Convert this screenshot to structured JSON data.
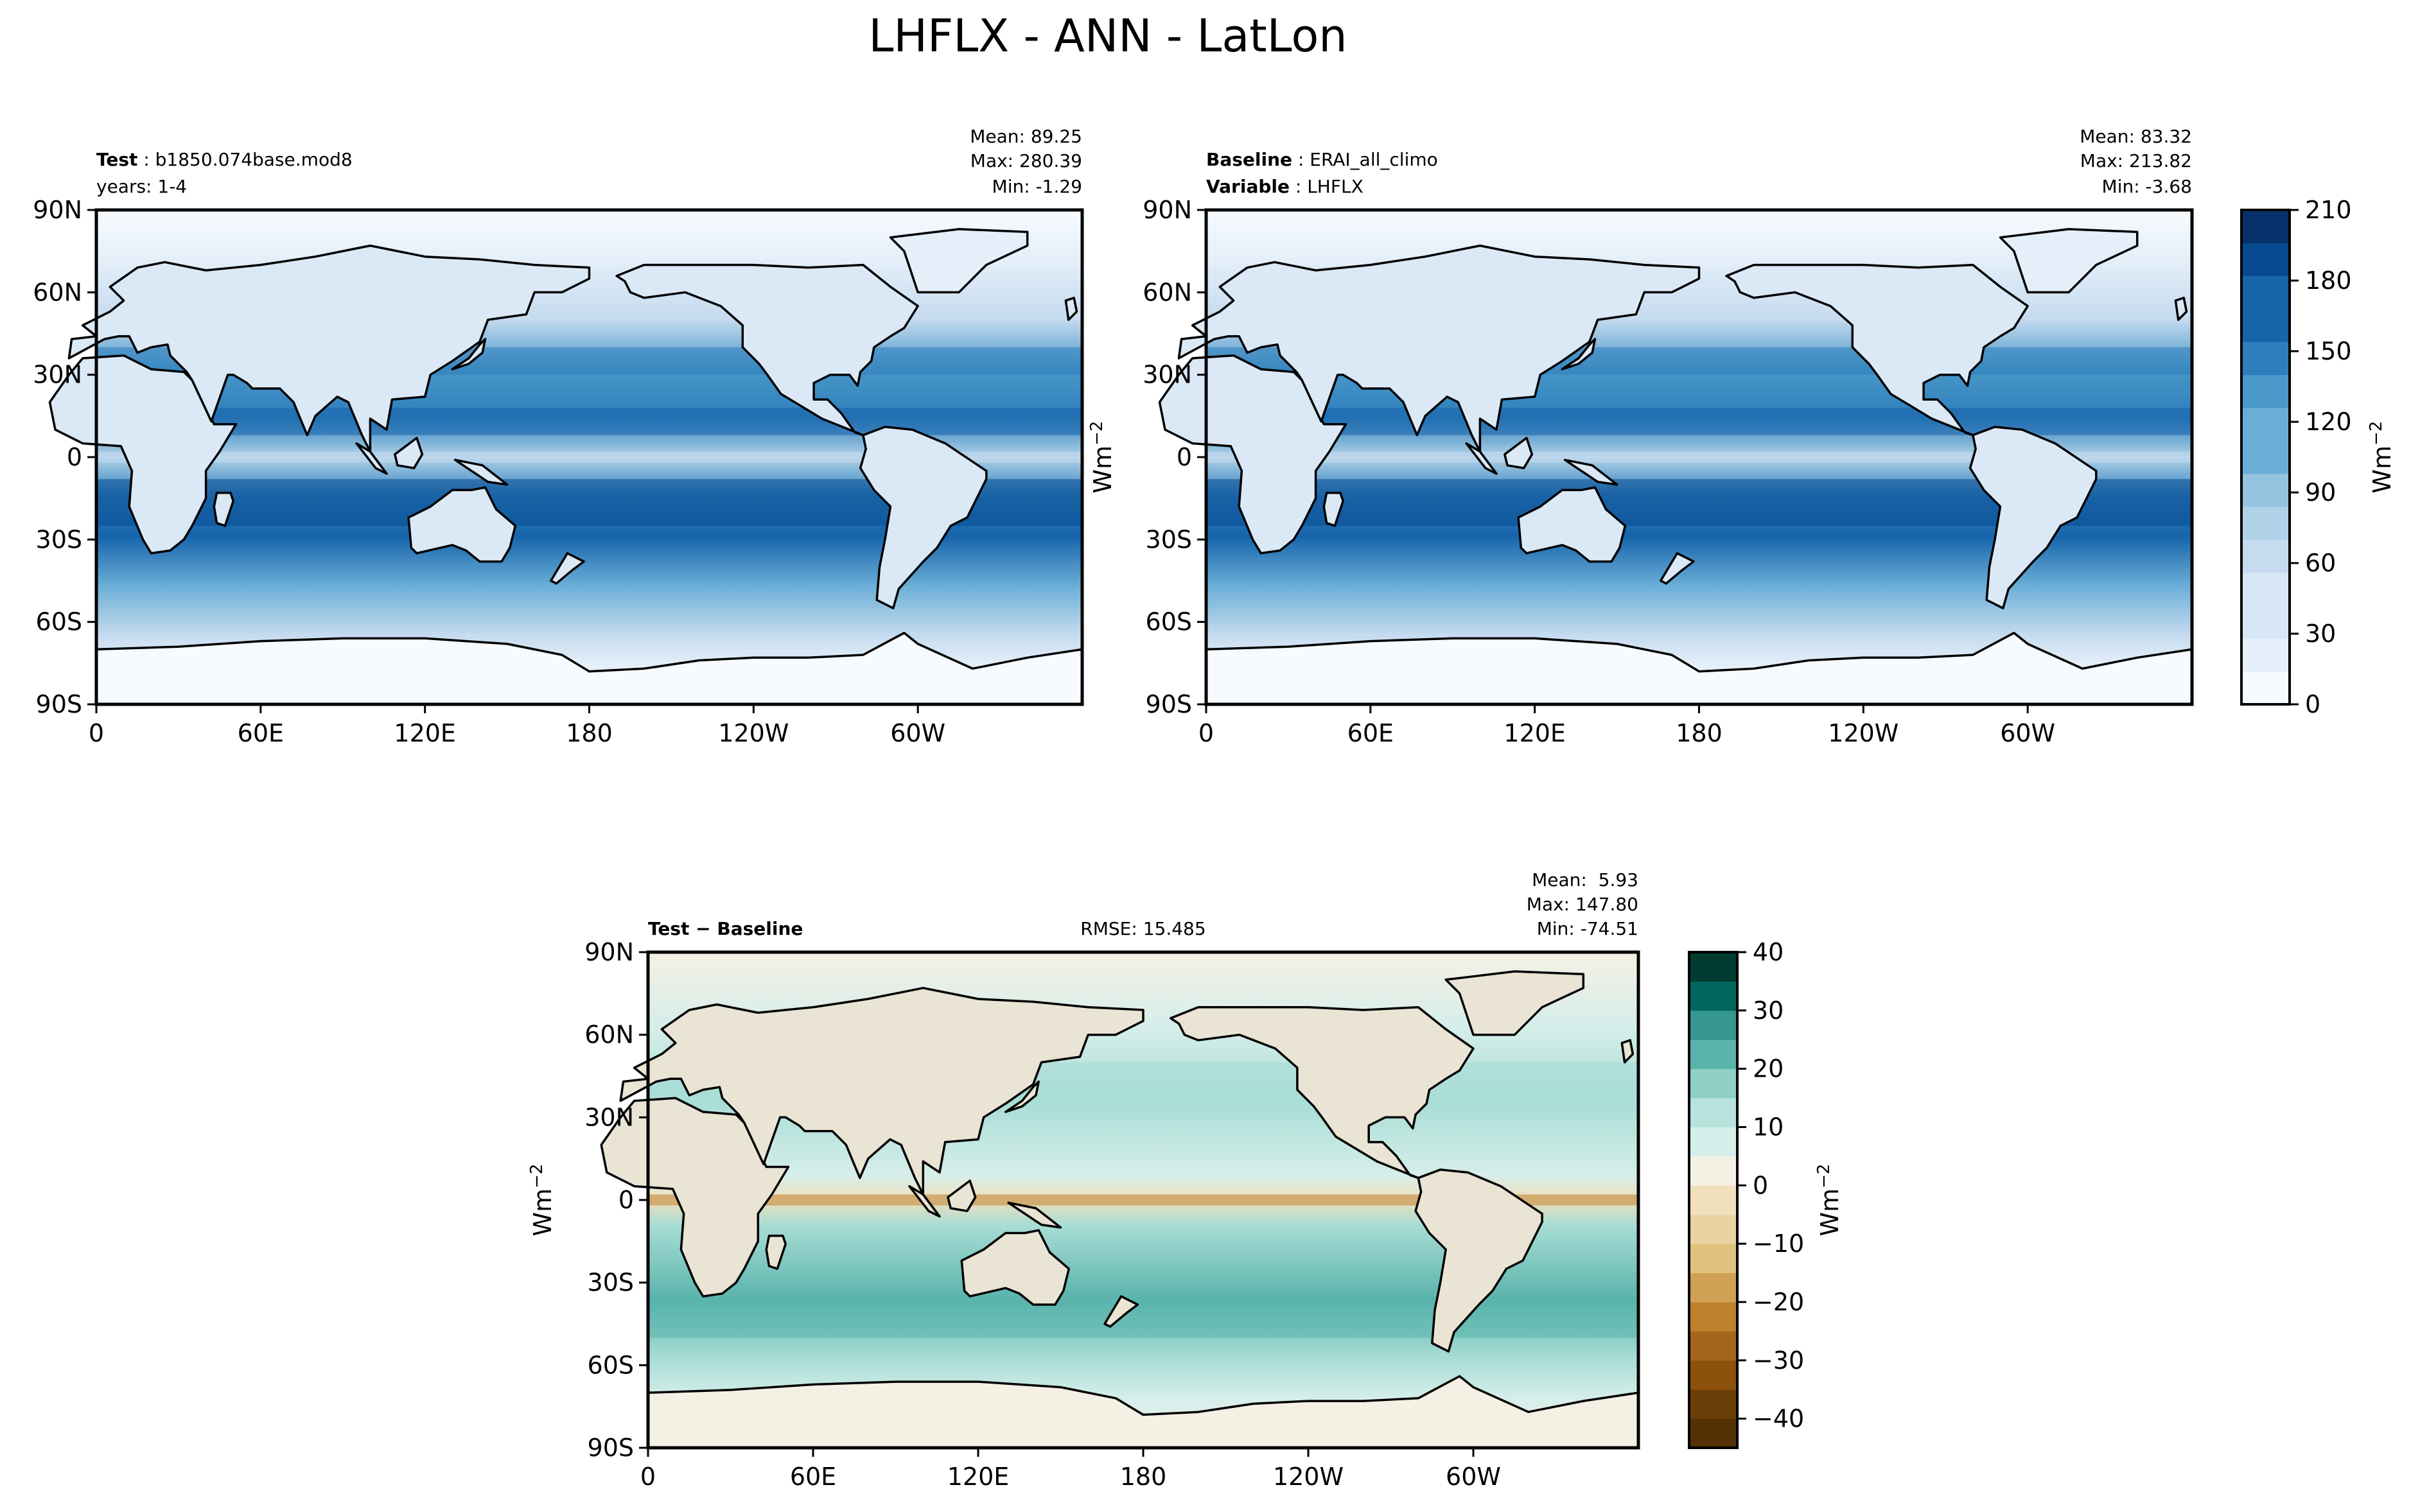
{
  "figure": {
    "title": "LHFLX - ANN - LatLon"
  },
  "colors": {
    "blues": [
      "#f7fbff",
      "#e4eff9",
      "#d8e7f5",
      "#c6dbef",
      "#b0d2e8",
      "#94c4df",
      "#6aaed6",
      "#4a98c9",
      "#2e7ebc",
      "#1764ab",
      "#084a91",
      "#08306b"
    ],
    "diff": [
      "#543005",
      "#8c510a",
      "#bf812d",
      "#dfc27d",
      "#f0e0bc",
      "#f5f0e4",
      "#d6eeea",
      "#a8ddd5",
      "#5ab4ac",
      "#01665e",
      "#003c30"
    ],
    "land_low": "#e8f1fa",
    "coast": "#000000"
  },
  "chart_data": [
    {
      "type": "heatmap",
      "panel": "test",
      "variable": "LHFLX",
      "label_bold": "Test",
      "label_text": "b1850.074base.mod8",
      "label_line2": "years: 1-4",
      "stats": [
        "Mean: 89.25",
        "Max: 280.39",
        "Min: -1.29"
      ],
      "mean": 89.25,
      "max": 280.39,
      "min": -1.29,
      "xticks": [
        "0",
        "60E",
        "120E",
        "180",
        "120W",
        "60W"
      ],
      "yticks": [
        "90N",
        "60N",
        "30N",
        "0",
        "30S",
        "60S",
        "90S"
      ],
      "xlim": [
        0,
        360
      ],
      "ylim": [
        -90,
        90
      ],
      "colormap": "Blues",
      "clim": [
        0,
        210
      ]
    },
    {
      "type": "heatmap",
      "panel": "baseline",
      "label_bold": "Baseline",
      "label_text": "ERAI_all_climo",
      "label2_bold": "Variable",
      "label2_text": "LHFLX",
      "stats": [
        "Mean: 83.32",
        "Max: 213.82",
        "Min: -3.68"
      ],
      "mean": 83.32,
      "max": 213.82,
      "min": -3.68,
      "xticks": [
        "0",
        "60E",
        "120E",
        "180",
        "120W",
        "60W"
      ],
      "yticks": [
        "90N",
        "60N",
        "30N",
        "0",
        "30S",
        "60S",
        "90S"
      ],
      "xlim": [
        0,
        360
      ],
      "ylim": [
        -90,
        90
      ],
      "colormap": "Blues",
      "clim": [
        0,
        210
      ],
      "colorbar_ticks": [
        "210",
        "180",
        "150",
        "120",
        "90",
        "60",
        "30",
        "0"
      ],
      "colorbar_label": "Wm",
      "colorbar_label_sup": "−2"
    },
    {
      "type": "heatmap",
      "panel": "difference",
      "label_bold": "Test − Baseline",
      "rmse": "RMSE: 15.485",
      "stats": [
        "Mean:  5.93",
        "Max: 147.80",
        "Min: -74.51"
      ],
      "mean": 5.93,
      "max": 147.8,
      "min": -74.51,
      "xticks": [
        "0",
        "60E",
        "120E",
        "180",
        "120W",
        "60W"
      ],
      "yticks": [
        "90N",
        "60N",
        "30N",
        "0",
        "30S",
        "60S",
        "90S"
      ],
      "xlim": [
        0,
        360
      ],
      "ylim": [
        -90,
        90
      ],
      "colormap": "BrBG",
      "clim": [
        -45,
        40
      ],
      "colorbar_ticks": [
        "40",
        "30",
        "20",
        "10",
        "0",
        "−10",
        "−20",
        "−30",
        "−40"
      ],
      "colorbar_label": "Wm",
      "colorbar_label_sup": "−2"
    }
  ],
  "ylabel": {
    "text": "Wm",
    "sup": "−2"
  }
}
